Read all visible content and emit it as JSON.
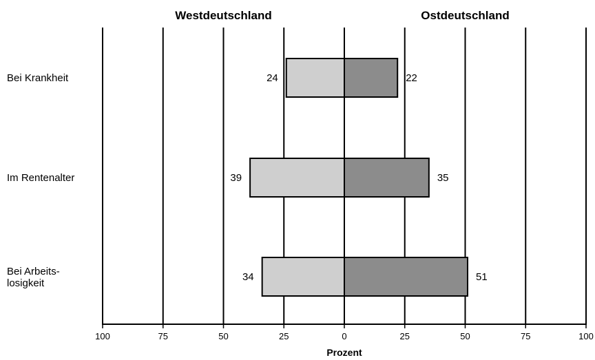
{
  "chart_data": {
    "type": "bar",
    "orientation": "horizontal",
    "layout": "diverging",
    "categories": [
      "Bei Krankheit",
      "Im Rentenalter",
      "Bei Arbeits-\nlosigkeit"
    ],
    "series": [
      {
        "name": "Westdeutschland",
        "values": [
          24,
          39,
          34
        ],
        "color": "#cfcfcf",
        "direction": "left"
      },
      {
        "name": "Ostdeutschland",
        "values": [
          22,
          35,
          51
        ],
        "color": "#8c8c8c",
        "direction": "right"
      }
    ],
    "xlabel": "Prozent",
    "xlim": [
      0,
      100
    ],
    "x_ticks": [
      100,
      75,
      50,
      25,
      0,
      25,
      50,
      75,
      100
    ],
    "grid": true,
    "legend": "none"
  }
}
